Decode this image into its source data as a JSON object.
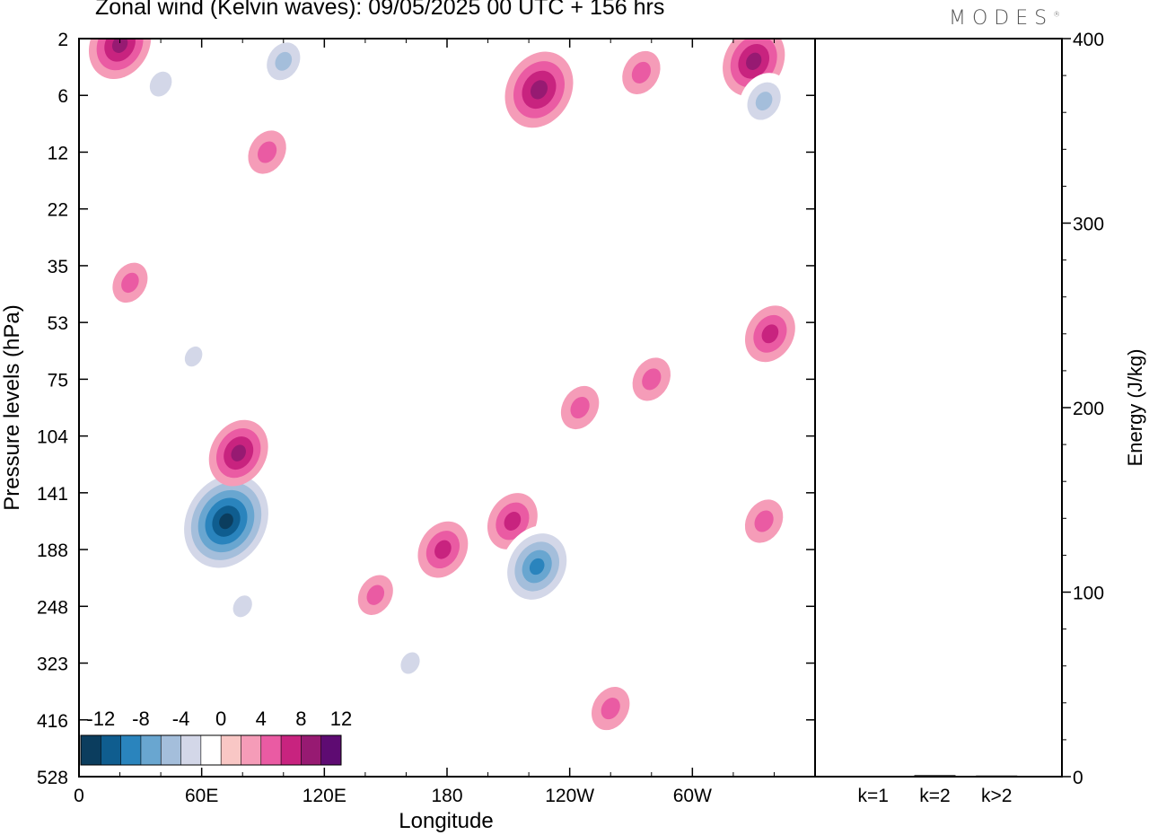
{
  "header": {
    "title": "Zonal wind (Kelvin waves):  09/05/2025  00 UTC  + 156 hrs",
    "brand": "MODES"
  },
  "chart_data": [
    {
      "type": "heatmap",
      "title": "Zonal wind (Kelvin waves):  09/05/2025  00 UTC  + 156 hrs",
      "xlabel": "Longitude",
      "ylabel": "Pressure levels (hPa)",
      "x_ticks": [
        "0",
        "60E",
        "120E",
        "180",
        "120W",
        "60W"
      ],
      "y_ticks": [
        "2",
        "6",
        "12",
        "22",
        "35",
        "53",
        "75",
        "104",
        "141",
        "188",
        "248",
        "323",
        "416",
        "528"
      ],
      "colorbar": {
        "labels": [
          "-12",
          "-8",
          "-4",
          "0",
          "4",
          "8",
          "12"
        ],
        "levels": [
          -14,
          -12,
          -10,
          -8,
          -6,
          -4,
          -2,
          2,
          4,
          6,
          8,
          10,
          12,
          14
        ],
        "colors": [
          "#0b3d5e",
          "#0f5d8f",
          "#2a84bd",
          "#69a6d0",
          "#a4bedb",
          "#d3d7e8",
          "#ffffff",
          "#f9c7c5",
          "#f59cb8",
          "#ea5ba3",
          "#c8237f",
          "#971a72",
          "#5e0b72"
        ]
      },
      "features": [
        {
          "lon": 72,
          "lev": 8.5,
          "value": -13
        },
        {
          "lon": 78,
          "lev": 7.3,
          "value": 6.5
        },
        {
          "lon": 80,
          "lev": 10,
          "value": -3
        },
        {
          "lon": 178,
          "lev": 9,
          "value": 5
        },
        {
          "lon": 212,
          "lev": 8.5,
          "value": 5
        },
        {
          "lon": 224,
          "lev": 9.3,
          "value": -9
        },
        {
          "lon": 162,
          "lev": 11,
          "value": -3
        },
        {
          "lon": 25,
          "lev": 4.3,
          "value": 2.5
        },
        {
          "lon": 56,
          "lev": 5.6,
          "value": -2.5
        },
        {
          "lon": 338,
          "lev": 5.2,
          "value": 5
        },
        {
          "lon": 335,
          "lev": 8.5,
          "value": 3
        },
        {
          "lon": 145,
          "lev": 9.8,
          "value": 2.5
        },
        {
          "lon": 245,
          "lev": 6.5,
          "value": 3
        },
        {
          "lon": 280,
          "lev": 6,
          "value": 3
        },
        {
          "lon": 260,
          "lev": 11.8,
          "value": 3
        },
        {
          "lon": 92,
          "lev": 2,
          "value": 3
        },
        {
          "lon": 20,
          "lev": 0.1,
          "value": 7
        },
        {
          "lon": 40,
          "lev": 0.8,
          "value": -4
        },
        {
          "lon": 100,
          "lev": 0.4,
          "value": -5
        },
        {
          "lon": 225,
          "lev": 0.9,
          "value": 8
        },
        {
          "lon": 330,
          "lev": 0.4,
          "value": 7
        },
        {
          "lon": 335,
          "lev": 1.1,
          "value": -5
        },
        {
          "lon": 275,
          "lev": 0.6,
          "value": 3
        }
      ]
    },
    {
      "type": "bar",
      "categories": [
        "k=1",
        "k=2",
        "k>2"
      ],
      "values": [
        0.4,
        0.8,
        0.6
      ],
      "ylabel": "Energy (J/kg)",
      "ylim": [
        0,
        400
      ],
      "y_ticks": [
        "0",
        "100",
        "200",
        "300",
        "400"
      ]
    }
  ]
}
